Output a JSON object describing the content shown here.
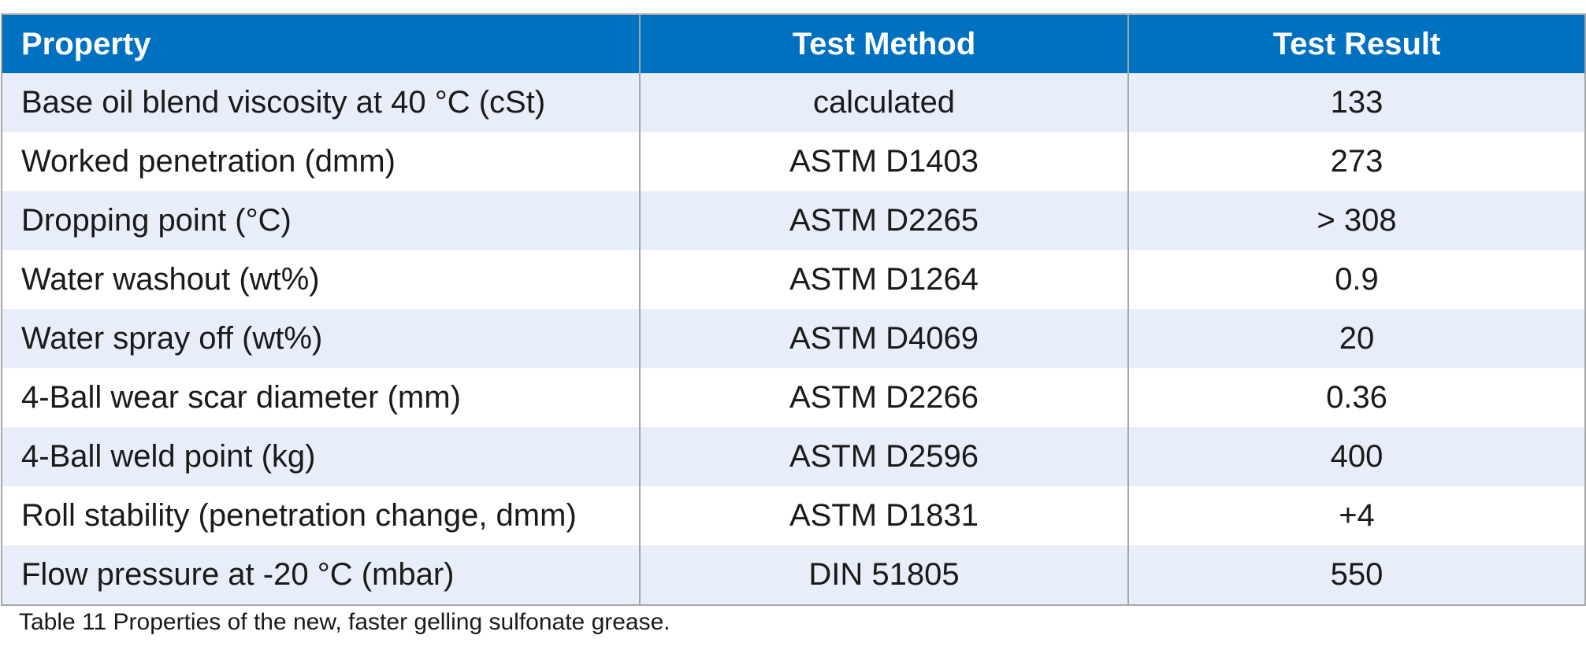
{
  "table": {
    "headers": [
      "Property",
      "Test Method",
      "Test Result"
    ],
    "rows": [
      [
        "Base oil blend viscosity at 40 °C (cSt)",
        "calculated",
        "133"
      ],
      [
        "Worked penetration (dmm)",
        "ASTM D1403",
        "273"
      ],
      [
        "Dropping point (°C)",
        "ASTM D2265",
        "> 308"
      ],
      [
        "Water washout (wt%)",
        "ASTM D1264",
        "0.9"
      ],
      [
        "Water spray off (wt%)",
        "ASTM D4069",
        "20"
      ],
      [
        "4-Ball wear scar diameter (mm)",
        "ASTM D2266",
        "0.36"
      ],
      [
        "4-Ball weld point (kg)",
        "ASTM D2596",
        "400"
      ],
      [
        "Roll stability (penetration change, dmm)",
        "ASTM D1831",
        "+4"
      ],
      [
        "Flow pressure at -20 °C (mbar)",
        "DIN 51805",
        "550"
      ]
    ]
  },
  "caption": "Table 11 Properties of the new, faster gelling sulfonate grease.",
  "colors": {
    "header_bg": "#0070c0",
    "header_text": "#ffffff",
    "row_alt_bg": "#e8eef9",
    "border": "#a6a6a6"
  }
}
